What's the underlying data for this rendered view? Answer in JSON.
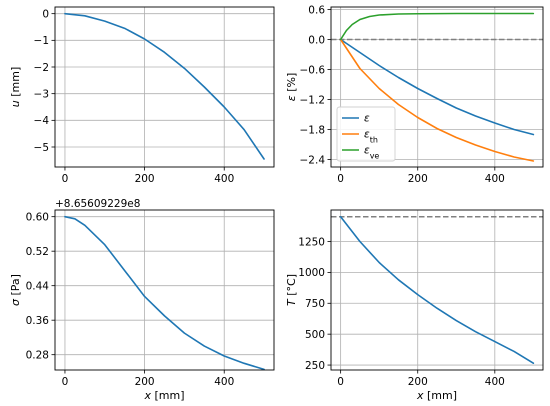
{
  "chart_data": [
    {
      "id": "u",
      "type": "line",
      "xlabel": "",
      "ylabel": "u [mm]",
      "xlim": [
        -25,
        525
      ],
      "ylim": [
        -5.75,
        0.25
      ],
      "xticks": [
        0,
        200,
        400
      ],
      "yticks": [
        0,
        -1,
        -2,
        -3,
        -4,
        -5
      ],
      "ytick_labels": [
        "0",
        "−1",
        "−2",
        "−3",
        "−4",
        "−5"
      ],
      "offset_text": "",
      "grid": true,
      "series": [
        {
          "name": "",
          "color": "#1f77b4",
          "x": [
            0,
            50,
            100,
            150,
            200,
            250,
            300,
            350,
            400,
            450,
            500
          ],
          "y": [
            0,
            -0.08,
            -0.28,
            -0.55,
            -0.95,
            -1.45,
            -2.05,
            -2.75,
            -3.5,
            -4.35,
            -5.45
          ]
        }
      ],
      "reference_lines": []
    },
    {
      "id": "eps",
      "type": "line",
      "xlabel": "",
      "ylabel": "ε [%]",
      "xlim": [
        -25,
        525
      ],
      "ylim": [
        -2.55,
        0.65
      ],
      "xticks": [
        0,
        200,
        400
      ],
      "yticks": [
        0.6,
        0.0,
        -0.6,
        -1.2,
        -1.8,
        -2.4
      ],
      "ytick_labels": [
        "0.6",
        "0.0",
        "−0.6",
        "−1.2",
        "−1.8",
        "−2.4"
      ],
      "offset_text": "",
      "grid": true,
      "legend": "lower-left",
      "series": [
        {
          "name": "ε",
          "color": "#1f77b4",
          "x": [
            0,
            50,
            100,
            150,
            200,
            250,
            300,
            350,
            400,
            450,
            500
          ],
          "y": [
            0,
            -0.26,
            -0.52,
            -0.76,
            -0.98,
            -1.18,
            -1.37,
            -1.53,
            -1.67,
            -1.8,
            -1.9
          ]
        },
        {
          "name": "εth",
          "color": "#ff7f0e",
          "x": [
            0,
            50,
            100,
            150,
            200,
            250,
            300,
            350,
            400,
            450,
            500
          ],
          "y": [
            0,
            -0.58,
            -0.98,
            -1.3,
            -1.56,
            -1.78,
            -1.96,
            -2.11,
            -2.24,
            -2.35,
            -2.43
          ]
        },
        {
          "name": "εve",
          "color": "#2ca02c",
          "x": [
            0,
            15,
            30,
            50,
            75,
            100,
            150,
            200,
            300,
            400,
            500
          ],
          "y": [
            0,
            0.18,
            0.3,
            0.4,
            0.46,
            0.49,
            0.51,
            0.515,
            0.52,
            0.52,
            0.52
          ]
        }
      ],
      "reference_lines": [
        {
          "axis": "y",
          "value": 0,
          "color": "#808080"
        }
      ]
    },
    {
      "id": "sigma",
      "type": "line",
      "xlabel": "x [mm]",
      "ylabel": "σ [Pa]",
      "xlim": [
        -25,
        525
      ],
      "ylim": [
        0.2445,
        0.6155
      ],
      "xticks": [
        0,
        200,
        400
      ],
      "yticks": [
        0.6,
        0.52,
        0.44,
        0.36,
        0.28
      ],
      "ytick_labels": [
        "0.60",
        "0.52",
        "0.44",
        "0.36",
        "0.28"
      ],
      "offset_text": "+8.65609229e8",
      "grid": true,
      "series": [
        {
          "name": "",
          "color": "#1f77b4",
          "x": [
            0,
            25,
            50,
            100,
            150,
            200,
            250,
            300,
            350,
            400,
            450,
            500
          ],
          "y": [
            0.6,
            0.595,
            0.58,
            0.535,
            0.475,
            0.415,
            0.37,
            0.33,
            0.3,
            0.277,
            0.26,
            0.246
          ]
        }
      ],
      "reference_lines": []
    },
    {
      "id": "T",
      "type": "line",
      "xlabel": "x [mm]",
      "ylabel": "T [°C]",
      "xlim": [
        -25,
        525
      ],
      "ylim": [
        210,
        1505
      ],
      "xticks": [
        0,
        200,
        400
      ],
      "yticks": [
        1250,
        1000,
        750,
        500,
        250
      ],
      "ytick_labels": [
        "1250",
        "1000",
        "750",
        "500",
        "250"
      ],
      "offset_text": "",
      "grid": true,
      "series": [
        {
          "name": "",
          "color": "#1f77b4",
          "x": [
            0,
            50,
            100,
            150,
            200,
            250,
            300,
            350,
            400,
            450,
            500
          ],
          "y": [
            1450,
            1250,
            1080,
            940,
            820,
            710,
            610,
            520,
            440,
            360,
            265
          ]
        }
      ],
      "reference_lines": [
        {
          "axis": "y",
          "value": 1450,
          "color": "#808080"
        }
      ]
    }
  ]
}
